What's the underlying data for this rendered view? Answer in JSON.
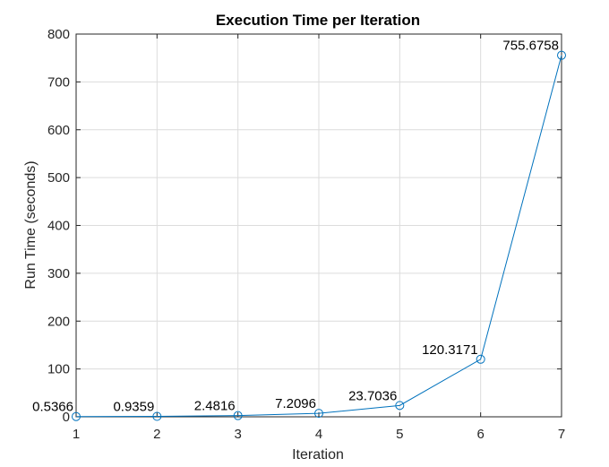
{
  "chart_data": {
    "type": "line",
    "title": "Execution Time per Iteration",
    "xlabel": "Iteration",
    "ylabel": "Run Time (seconds)",
    "x": [
      1,
      2,
      3,
      4,
      5,
      6,
      7
    ],
    "y": [
      0.5366,
      0.9359,
      2.4816,
      7.2096,
      23.7036,
      120.3171,
      755.6758
    ],
    "data_labels": [
      "0.5366",
      "0.9359",
      "2.4816",
      "7.2096",
      "23.7036",
      "120.3171",
      "755.6758"
    ],
    "xlim": [
      1,
      7
    ],
    "ylim": [
      0,
      800
    ],
    "xticks": [
      1,
      2,
      3,
      4,
      5,
      6,
      7
    ],
    "xtick_labels": [
      "1",
      "2",
      "3",
      "4",
      "5",
      "6",
      "7"
    ],
    "yticks": [
      0,
      100,
      200,
      300,
      400,
      500,
      600,
      700,
      800
    ],
    "ytick_labels": [
      "0",
      "100",
      "200",
      "300",
      "400",
      "500",
      "600",
      "700",
      "800"
    ],
    "grid": true,
    "marker": "circle-open",
    "color": "#0072BD"
  }
}
